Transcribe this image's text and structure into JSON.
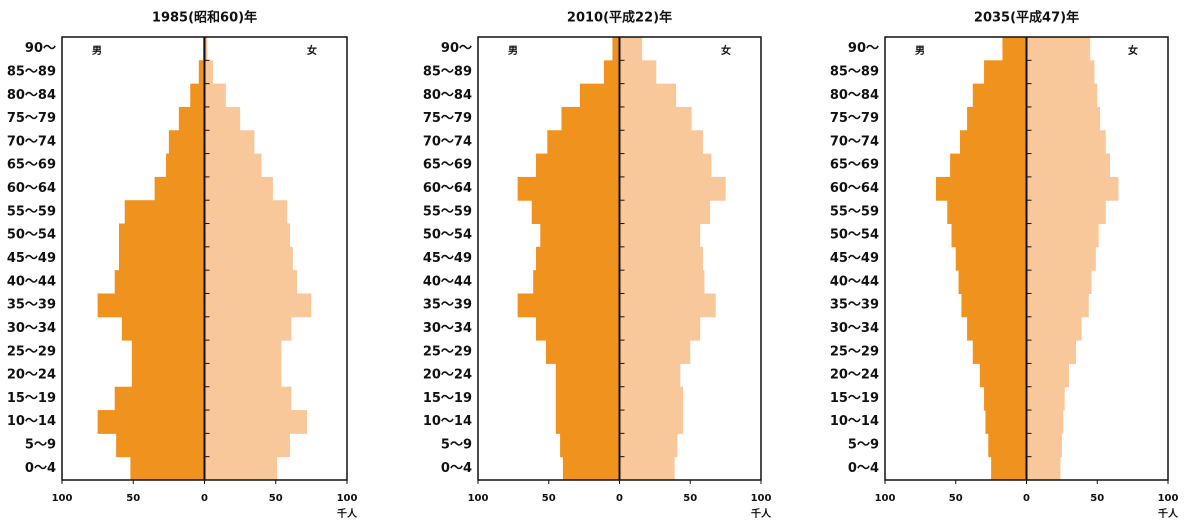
{
  "chart_data": [
    {
      "type": "pyramid",
      "title": "1985(昭和60)年",
      "x_unit": "千人",
      "categories": [
        "90〜",
        "85〜89",
        "80〜84",
        "75〜79",
        "70〜74",
        "65〜69",
        "60〜64",
        "55〜59",
        "50〜54",
        "45〜49",
        "40〜44",
        "35〜39",
        "30〜34",
        "25〜29",
        "20〜24",
        "15〜19",
        "10〜14",
        "5〜9",
        "0〜4"
      ],
      "series": [
        {
          "name": "男",
          "color": "#f0921e",
          "side": "left",
          "values": [
            1,
            4,
            10,
            18,
            25,
            27,
            35,
            56,
            60,
            60,
            63,
            75,
            58,
            51,
            51,
            63,
            75,
            62,
            52
          ]
        },
        {
          "name": "女",
          "color": "#f8c89a",
          "side": "right",
          "values": [
            2,
            6,
            15,
            25,
            35,
            40,
            48,
            58,
            60,
            62,
            65,
            75,
            61,
            54,
            54,
            61,
            72,
            60,
            51
          ]
        }
      ],
      "xlim": [
        -100,
        100
      ],
      "xticks": [
        {
          "value": -100,
          "label": "100"
        },
        {
          "value": -50,
          "label": "50"
        },
        0,
        50,
        100
      ]
    },
    {
      "type": "pyramid",
      "title": "2010(平成22)年",
      "x_unit": "千人",
      "categories": [
        "90〜",
        "85〜89",
        "80〜84",
        "75〜79",
        "70〜74",
        "65〜69",
        "60〜64",
        "55〜59",
        "50〜54",
        "45〜49",
        "40〜44",
        "35〜39",
        "30〜34",
        "25〜29",
        "20〜24",
        "15〜19",
        "10〜14",
        "5〜9",
        "0〜4"
      ],
      "series": [
        {
          "name": "男",
          "color": "#f0921e",
          "side": "left",
          "values": [
            5,
            11,
            28,
            41,
            51,
            59,
            72,
            62,
            56,
            59,
            61,
            72,
            59,
            52,
            45,
            45,
            45,
            42,
            40
          ]
        },
        {
          "name": "女",
          "color": "#f8c89a",
          "side": "right",
          "values": [
            16,
            26,
            40,
            51,
            59,
            65,
            75,
            64,
            57,
            59,
            60,
            68,
            57,
            50,
            43,
            45,
            45,
            41,
            39
          ]
        }
      ],
      "xlim": [
        -100,
        100
      ],
      "xticks": [
        {
          "value": -100,
          "label": "100"
        },
        {
          "value": -50,
          "label": "50"
        },
        0,
        50,
        100
      ]
    },
    {
      "type": "pyramid",
      "title": "2035(平成47)年",
      "x_unit": "千人",
      "categories": [
        "90〜",
        "85〜89",
        "80〜84",
        "75〜79",
        "70〜74",
        "65〜69",
        "60〜64",
        "55〜59",
        "50〜54",
        "45〜49",
        "40〜44",
        "35〜39",
        "30〜34",
        "25〜29",
        "20〜24",
        "15〜19",
        "10〜14",
        "5〜9",
        "0〜4"
      ],
      "series": [
        {
          "name": "男",
          "color": "#f0921e",
          "side": "left",
          "values": [
            17,
            30,
            38,
            42,
            47,
            54,
            64,
            56,
            53,
            50,
            48,
            46,
            42,
            38,
            33,
            30,
            29,
            27,
            25
          ]
        },
        {
          "name": "女",
          "color": "#f8c89a",
          "side": "right",
          "values": [
            45,
            48,
            50,
            52,
            56,
            59,
            65,
            56,
            51,
            49,
            46,
            44,
            39,
            35,
            30,
            27,
            26,
            25,
            24
          ]
        }
      ],
      "xlim": [
        -100,
        100
      ],
      "xticks": [
        {
          "value": -100,
          "label": "100"
        },
        {
          "value": -50,
          "label": "50"
        },
        0,
        50,
        100
      ]
    }
  ]
}
